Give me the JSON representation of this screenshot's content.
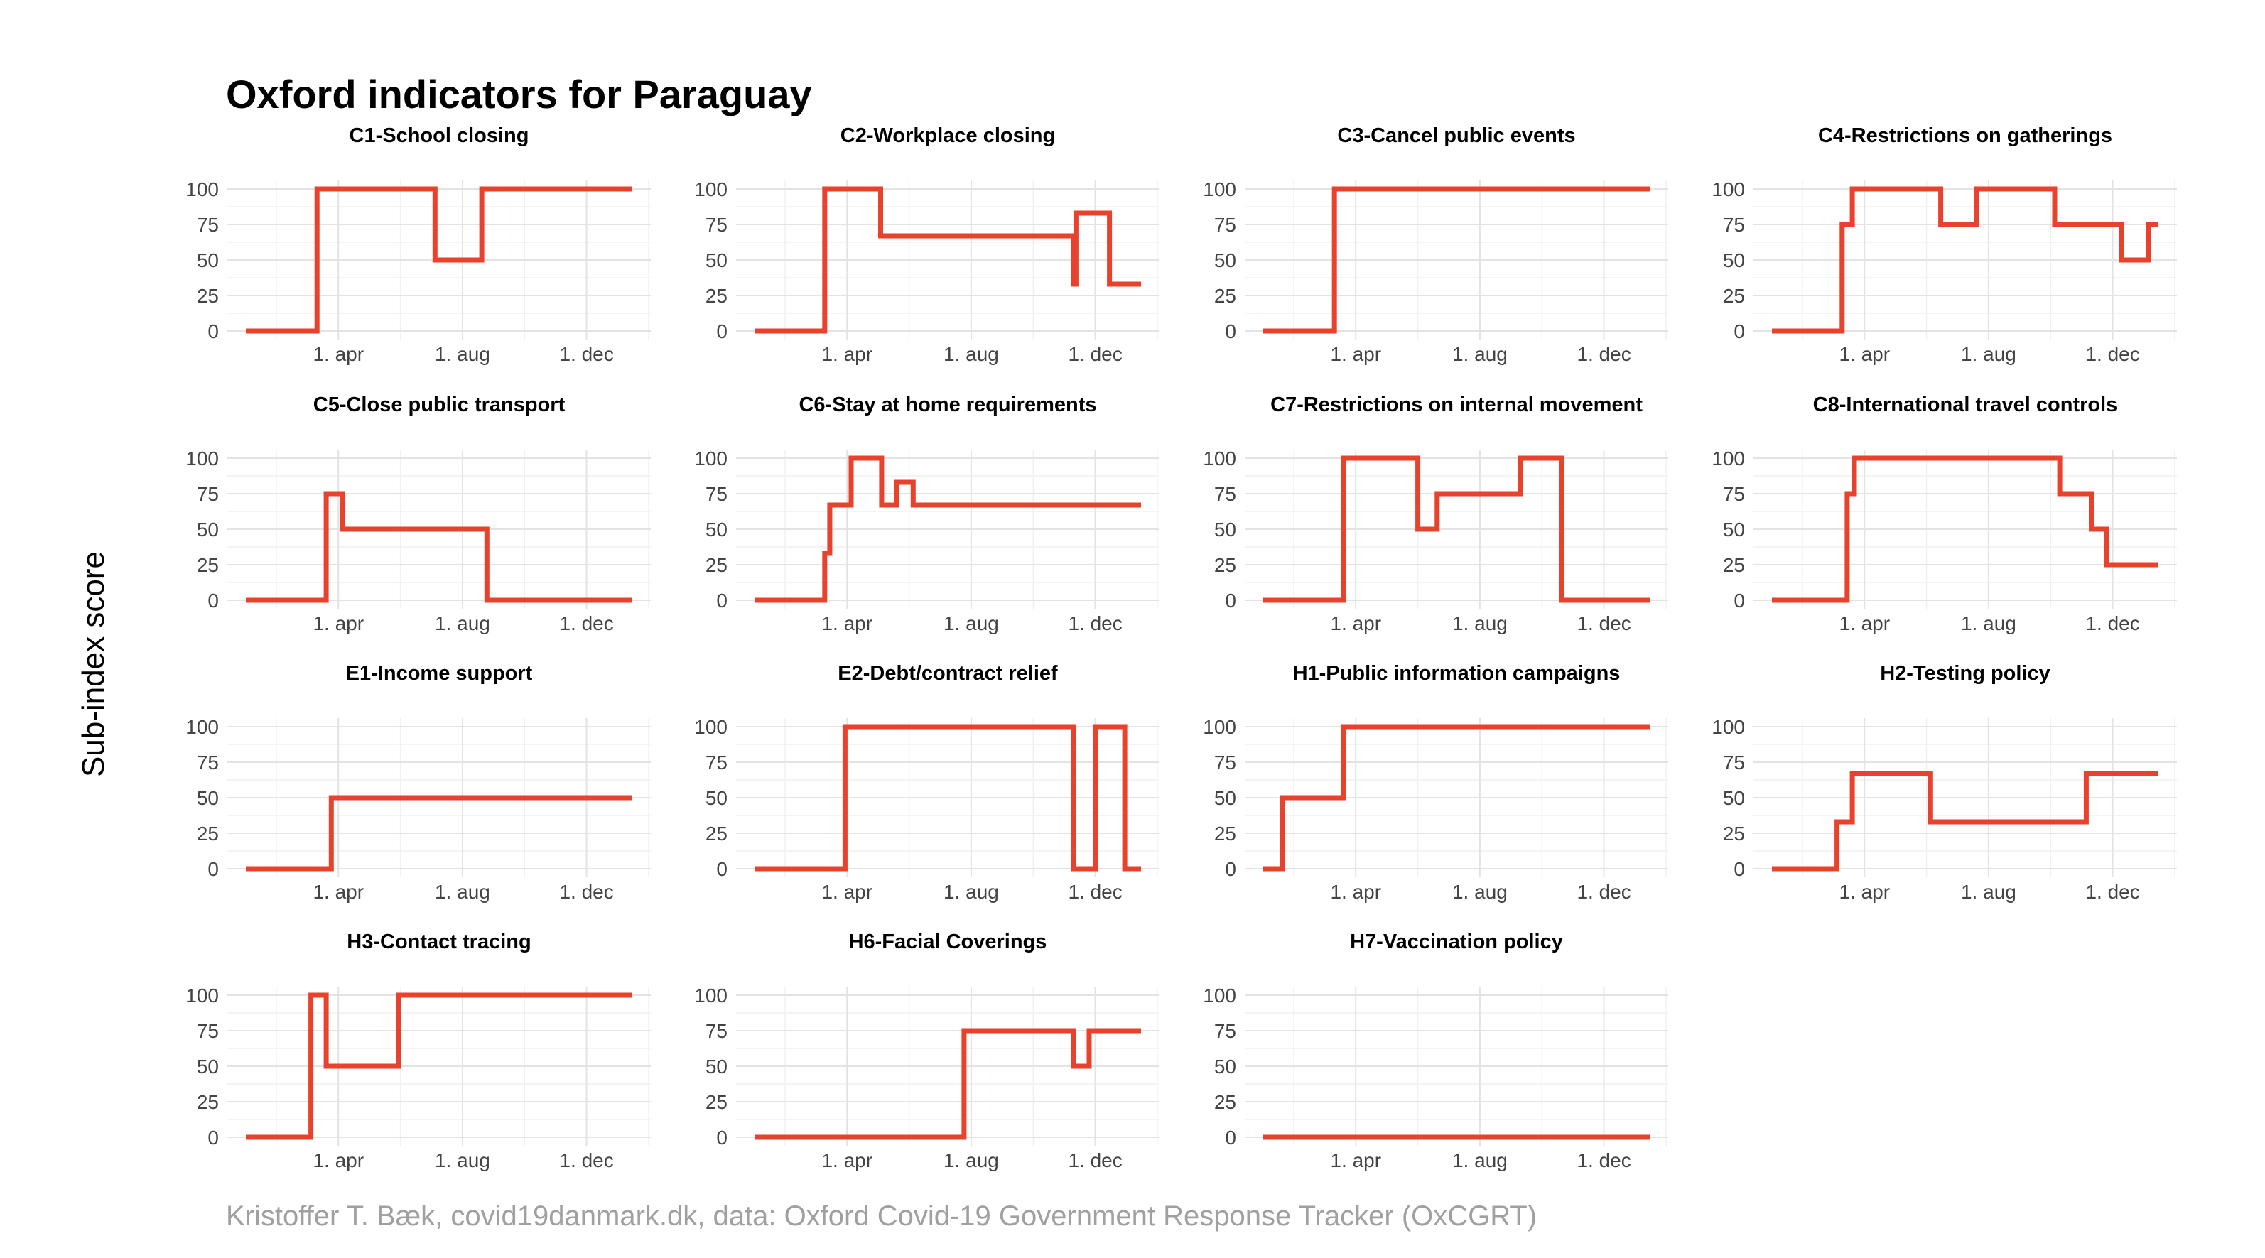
{
  "title": "Oxford indicators for Paraguay",
  "ylabel": "Sub-index score",
  "caption": "Kristoffer T. Bæk, covid19danmark.dk, data: Oxford Covid-19 Government Response Tracker (OxCGRT)",
  "colors": {
    "series": "#e8412c",
    "grid": "#e3e3e3",
    "caption": "#a0a0a0"
  },
  "chart_data": {
    "type": "line",
    "layout": "small multiples, 4 columns",
    "x_axis": {
      "range": [
        "2020-01-01",
        "2021-01-15"
      ],
      "ticks": [
        "2020-04-01",
        "2020-08-01",
        "2020-12-01"
      ],
      "tick_labels": [
        "1. apr",
        "1. aug",
        "1. dec"
      ]
    },
    "y_axis": {
      "range": [
        0,
        100
      ],
      "ticks": [
        0,
        25,
        50,
        75,
        100
      ]
    },
    "grid": true,
    "legend": "none",
    "panels": [
      {
        "title": "C1-School closing",
        "steps": [
          [
            "2020-01-01",
            0
          ],
          [
            "2020-03-11",
            100
          ],
          [
            "2020-07-05",
            50
          ],
          [
            "2020-08-20",
            100
          ],
          [
            "2021-01-15",
            100
          ]
        ]
      },
      {
        "title": "C2-Workplace closing",
        "steps": [
          [
            "2020-01-01",
            0
          ],
          [
            "2020-03-10",
            100
          ],
          [
            "2020-05-04",
            67
          ],
          [
            "2020-11-10",
            33
          ],
          [
            "2020-11-12",
            83
          ],
          [
            "2020-12-15",
            33
          ],
          [
            "2021-01-15",
            33
          ]
        ]
      },
      {
        "title": "C3-Cancel public events",
        "steps": [
          [
            "2020-01-01",
            0
          ],
          [
            "2020-03-11",
            100
          ],
          [
            "2021-01-15",
            100
          ]
        ]
      },
      {
        "title": "C4-Restrictions on gatherings",
        "steps": [
          [
            "2020-01-01",
            0
          ],
          [
            "2020-03-10",
            75
          ],
          [
            "2020-03-20",
            100
          ],
          [
            "2020-06-15",
            75
          ],
          [
            "2020-07-20",
            100
          ],
          [
            "2020-10-05",
            75
          ],
          [
            "2020-12-10",
            50
          ],
          [
            "2021-01-05",
            75
          ],
          [
            "2021-01-15",
            75
          ]
        ]
      },
      {
        "title": "C5-Close public transport",
        "steps": [
          [
            "2020-01-01",
            0
          ],
          [
            "2020-03-20",
            75
          ],
          [
            "2020-04-05",
            50
          ],
          [
            "2020-08-25",
            0
          ],
          [
            "2021-01-15",
            0
          ]
        ]
      },
      {
        "title": "C6-Stay at home requirements",
        "steps": [
          [
            "2020-01-01",
            0
          ],
          [
            "2020-03-10",
            33
          ],
          [
            "2020-03-15",
            67
          ],
          [
            "2020-04-05",
            100
          ],
          [
            "2020-05-05",
            67
          ],
          [
            "2020-05-20",
            83
          ],
          [
            "2020-06-05",
            67
          ],
          [
            "2021-01-15",
            67
          ]
        ]
      },
      {
        "title": "C7-Restrictions on internal movement",
        "steps": [
          [
            "2020-01-01",
            0
          ],
          [
            "2020-03-20",
            100
          ],
          [
            "2020-06-01",
            50
          ],
          [
            "2020-06-20",
            75
          ],
          [
            "2020-09-10",
            100
          ],
          [
            "2020-10-20",
            0
          ],
          [
            "2021-01-15",
            0
          ]
        ]
      },
      {
        "title": "C8-International travel controls",
        "steps": [
          [
            "2020-01-01",
            0
          ],
          [
            "2020-03-15",
            75
          ],
          [
            "2020-03-22",
            100
          ],
          [
            "2020-10-10",
            75
          ],
          [
            "2020-11-10",
            50
          ],
          [
            "2020-11-25",
            25
          ],
          [
            "2021-01-15",
            25
          ]
        ]
      },
      {
        "title": "E1-Income support",
        "steps": [
          [
            "2020-01-01",
            0
          ],
          [
            "2020-03-25",
            50
          ],
          [
            "2021-01-15",
            50
          ]
        ]
      },
      {
        "title": "E2-Debt/contract relief",
        "steps": [
          [
            "2020-01-01",
            0
          ],
          [
            "2020-03-30",
            100
          ],
          [
            "2020-11-10",
            0
          ],
          [
            "2020-12-01",
            100
          ],
          [
            "2020-12-30",
            0
          ],
          [
            "2021-01-15",
            0
          ]
        ]
      },
      {
        "title": "H1-Public information campaigns",
        "steps": [
          [
            "2020-01-01",
            0
          ],
          [
            "2020-01-20",
            50
          ],
          [
            "2020-03-20",
            100
          ],
          [
            "2021-01-15",
            100
          ]
        ]
      },
      {
        "title": "H2-Testing policy",
        "steps": [
          [
            "2020-01-01",
            0
          ],
          [
            "2020-03-05",
            33
          ],
          [
            "2020-03-20",
            67
          ],
          [
            "2020-06-05",
            33
          ],
          [
            "2020-11-05",
            67
          ],
          [
            "2021-01-15",
            67
          ]
        ]
      },
      {
        "title": "H3-Contact tracing",
        "steps": [
          [
            "2020-01-01",
            0
          ],
          [
            "2020-03-05",
            100
          ],
          [
            "2020-03-20",
            50
          ],
          [
            "2020-05-30",
            100
          ],
          [
            "2021-01-15",
            100
          ]
        ]
      },
      {
        "title": "H6-Facial Coverings",
        "steps": [
          [
            "2020-01-01",
            0
          ],
          [
            "2020-07-25",
            75
          ],
          [
            "2020-11-10",
            50
          ],
          [
            "2020-11-25",
            75
          ],
          [
            "2021-01-15",
            75
          ]
        ]
      },
      {
        "title": "H7-Vaccination policy",
        "steps": [
          [
            "2020-01-01",
            0
          ],
          [
            "2021-01-15",
            0
          ]
        ]
      }
    ]
  }
}
